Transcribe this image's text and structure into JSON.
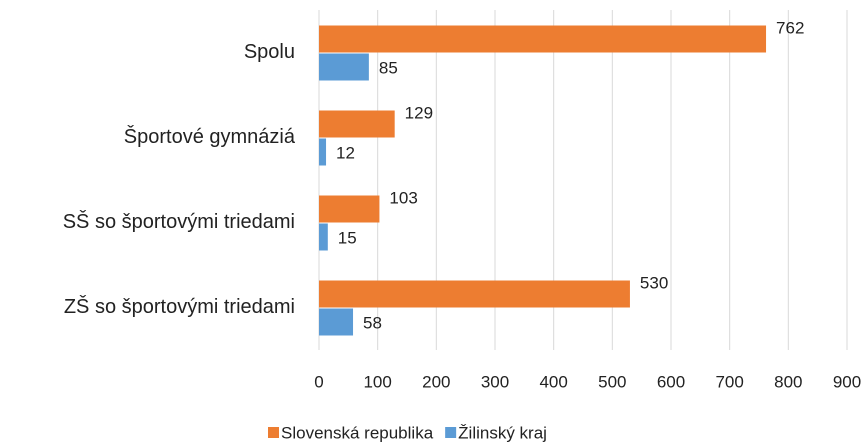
{
  "chart_data": {
    "type": "bar",
    "orientation": "horizontal",
    "categories": [
      "Spolu",
      "Športové gymnáziá",
      "SŠ so športovými triedami",
      "ZŠ so športovými triedami"
    ],
    "series": [
      {
        "name": "Slovenská republika",
        "color": "#ed7d31",
        "values": [
          762,
          129,
          103,
          530
        ]
      },
      {
        "name": "Žilinský kraj",
        "color": "#5b9bd5",
        "values": [
          85,
          12,
          15,
          58
        ]
      }
    ],
    "xlim": [
      0,
      900
    ],
    "xticks": [
      0,
      100,
      200,
      300,
      400,
      500,
      600,
      700,
      800,
      900
    ],
    "grid": true,
    "legend": "bottom"
  }
}
